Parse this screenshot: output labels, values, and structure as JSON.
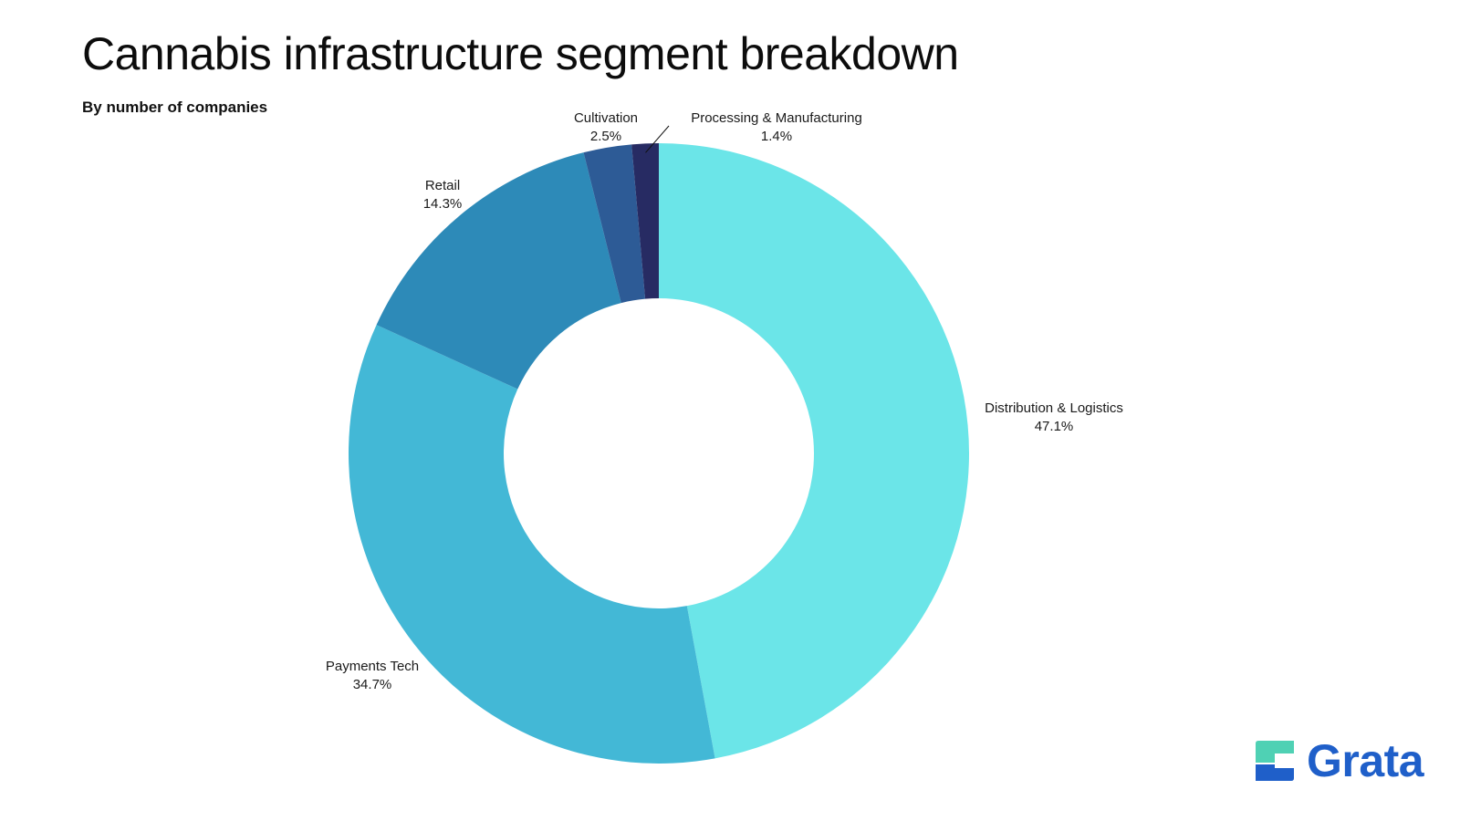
{
  "header": {
    "title": "Cannabis infrastructure segment breakdown",
    "subtitle": "By number of companies"
  },
  "brand": {
    "name": "Grata",
    "name_color": "#1f5fc9",
    "mark_top_color": "#4fd1b4",
    "mark_bottom_color": "#1f5fc9"
  },
  "chart_data": {
    "type": "pie",
    "variant": "donut",
    "unit": "%",
    "start": "12 o'clock",
    "direction": "clockwise",
    "slices": [
      {
        "label": "Distribution & Logistics",
        "value": 47.1,
        "value_label": "47.1%",
        "color": "#6be5e8"
      },
      {
        "label": "Payments Tech",
        "value": 34.7,
        "value_label": "34.7%",
        "color": "#43b8d6"
      },
      {
        "label": "Retail",
        "value": 14.3,
        "value_label": "14.3%",
        "color": "#2d8ab8"
      },
      {
        "label": "Cultivation",
        "value": 2.5,
        "value_label": "2.5%",
        "color": "#2d5b96"
      },
      {
        "label": "Processing & Manufacturing",
        "value": 1.4,
        "value_label": "1.4%",
        "color": "#272b63"
      }
    ]
  }
}
